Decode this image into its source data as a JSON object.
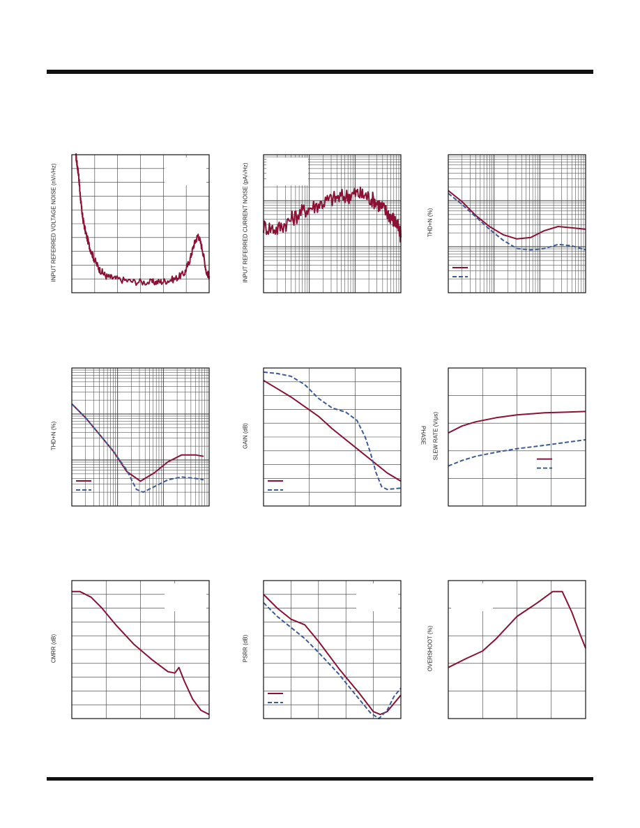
{
  "colors": {
    "series_a": "#8b1034",
    "series_b": "#3a5a9a",
    "grid": "#333333"
  },
  "chart_data": [
    {
      "id": "p1",
      "type": "line",
      "ylabel": "INPUT REFERRED VOLTAGE NOISE (nV/√Hz)",
      "xlim": [
        0,
        100
      ],
      "ylim": [
        0,
        100
      ],
      "series": [
        {
          "color": "series_a",
          "noise": 2.5,
          "points": [
            [
              3,
              99
            ],
            [
              4,
              92
            ],
            [
              5,
              85
            ],
            [
              6,
              72
            ],
            [
              7,
              62
            ],
            [
              8,
              54
            ],
            [
              10,
              44
            ],
            [
              13,
              33
            ],
            [
              16,
              25
            ],
            [
              20,
              17
            ],
            [
              25,
              12
            ],
            [
              32,
              10
            ],
            [
              45,
              8
            ],
            [
              58,
              7.5
            ],
            [
              66,
              8
            ],
            [
              75,
              10
            ],
            [
              82,
              14
            ],
            [
              86,
              24
            ],
            [
              89,
              35
            ],
            [
              92,
              42
            ],
            [
              95,
              32
            ],
            [
              98,
              15
            ],
            [
              100,
              12
            ]
          ]
        }
      ],
      "xgrid": 6,
      "ygrid": 10,
      "legend": "top-right"
    },
    {
      "id": "p2",
      "type": "line",
      "ylabel": "INPUT REFERRED CURRENT NOISE (pA/√Hz)",
      "xlim": [
        0,
        100
      ],
      "ylim": [
        0,
        100
      ],
      "series": [
        {
          "color": "series_a",
          "noise": 6,
          "points": [
            [
              0,
              48
            ],
            [
              10,
              46
            ],
            [
              20,
              53
            ],
            [
              30,
              60
            ],
            [
              40,
              64
            ],
            [
              50,
              68
            ],
            [
              60,
              70
            ],
            [
              68,
              72
            ],
            [
              75,
              70
            ],
            [
              82,
              66
            ],
            [
              88,
              60
            ],
            [
              93,
              55
            ],
            [
              97,
              50
            ],
            [
              100,
              40
            ]
          ]
        }
      ],
      "xgrid": "log",
      "ygrid": "log",
      "legend": "top-left"
    },
    {
      "id": "p3",
      "type": "line",
      "ylabel": "THD+N (%)",
      "xlim": [
        0,
        100
      ],
      "ylim": [
        0,
        100
      ],
      "series": [
        {
          "color": "series_a",
          "dash": false,
          "points": [
            [
              0,
              74
            ],
            [
              10,
              66
            ],
            [
              20,
              56
            ],
            [
              30,
              48
            ],
            [
              40,
              42
            ],
            [
              50,
              39
            ],
            [
              60,
              40
            ],
            [
              70,
              45
            ],
            [
              80,
              48
            ],
            [
              90,
              47
            ],
            [
              100,
              46
            ]
          ]
        },
        {
          "color": "series_b",
          "dash": true,
          "points": [
            [
              0,
              72
            ],
            [
              10,
              64
            ],
            [
              20,
              55
            ],
            [
              30,
              46
            ],
            [
              40,
              38
            ],
            [
              50,
              32
            ],
            [
              60,
              31
            ],
            [
              70,
              32
            ],
            [
              80,
              35
            ],
            [
              90,
              34
            ],
            [
              100,
              31
            ]
          ]
        }
      ],
      "xgrid": "log",
      "ygrid": "log",
      "legend": "bottom-left"
    },
    {
      "id": "p4",
      "type": "line",
      "ylabel": "THD+N (%)",
      "xlim": [
        0,
        100
      ],
      "ylim": [
        0,
        100
      ],
      "series": [
        {
          "color": "series_a",
          "dash": false,
          "points": [
            [
              0,
              74
            ],
            [
              10,
              64
            ],
            [
              20,
              52
            ],
            [
              30,
              40
            ],
            [
              40,
              25
            ],
            [
              50,
              18
            ],
            [
              60,
              24
            ],
            [
              70,
              32
            ],
            [
              80,
              37
            ],
            [
              90,
              37
            ],
            [
              96,
              36
            ]
          ]
        },
        {
          "color": "series_b",
          "dash": true,
          "points": [
            [
              0,
              74
            ],
            [
              10,
              64
            ],
            [
              20,
              52
            ],
            [
              30,
              40
            ],
            [
              40,
              26
            ],
            [
              47,
              12
            ],
            [
              52,
              10
            ],
            [
              60,
              14
            ],
            [
              70,
              19
            ],
            [
              80,
              21
            ],
            [
              90,
              20
            ],
            [
              96,
              19
            ]
          ]
        }
      ],
      "xgrid": "log",
      "ygrid": "log",
      "legend": "bottom-left"
    },
    {
      "id": "p5",
      "type": "line",
      "ylabel": "GAIN (dB)",
      "xlim": [
        0,
        100
      ],
      "ylim": [
        0,
        100
      ],
      "series": [
        {
          "color": "series_a",
          "dash": false,
          "noise": 0,
          "points": [
            [
              0,
              91
            ],
            [
              10,
              85
            ],
            [
              20,
              79
            ],
            [
              30,
              72
            ],
            [
              40,
              65
            ],
            [
              50,
              56
            ],
            [
              60,
              48
            ],
            [
              70,
              40
            ],
            [
              80,
              32
            ],
            [
              90,
              24
            ],
            [
              100,
              18
            ]
          ]
        },
        {
          "color": "series_b",
          "dash": true,
          "points": [
            [
              0,
              97
            ],
            [
              10,
              96
            ],
            [
              20,
              94
            ],
            [
              30,
              88
            ],
            [
              40,
              78
            ],
            [
              50,
              71
            ],
            [
              60,
              68
            ],
            [
              68,
              62
            ],
            [
              74,
              50
            ],
            [
              78,
              38
            ],
            [
              82,
              24
            ],
            [
              86,
              14
            ],
            [
              90,
              12
            ],
            [
              100,
              13
            ]
          ]
        }
      ],
      "xgrid": 3,
      "ygrid": 10,
      "legend": "bottom-left"
    },
    {
      "id": "p6",
      "type": "line",
      "ylabel": "SLEW RATE (V/µs)",
      "ylabel2": "PHASE",
      "xlim": [
        0,
        100
      ],
      "ylim": [
        0,
        100
      ],
      "series": [
        {
          "color": "series_a",
          "dash": false,
          "points": [
            [
              0,
              53
            ],
            [
              10,
              58
            ],
            [
              20,
              61
            ],
            [
              35,
              64
            ],
            [
              50,
              66
            ],
            [
              70,
              67.5
            ],
            [
              85,
              68
            ],
            [
              100,
              68.5
            ]
          ]
        },
        {
          "color": "series_b",
          "dash": true,
          "points": [
            [
              0,
              29
            ],
            [
              10,
              33
            ],
            [
              20,
              36
            ],
            [
              35,
              39
            ],
            [
              50,
              41.5
            ],
            [
              70,
              44
            ],
            [
              85,
              46
            ],
            [
              100,
              48
            ]
          ]
        }
      ],
      "xgrid": 4,
      "ygrid": 5,
      "legend": "center-right"
    },
    {
      "id": "p7",
      "type": "line",
      "ylabel": "CMRR (dB)",
      "xlim": [
        0,
        100
      ],
      "ylim": [
        0,
        100
      ],
      "series": [
        {
          "color": "series_a",
          "points": [
            [
              0,
              92
            ],
            [
              6,
              92
            ],
            [
              14,
              88
            ],
            [
              22,
              80
            ],
            [
              32,
              68
            ],
            [
              45,
              54
            ],
            [
              58,
              43
            ],
            [
              70,
              34
            ],
            [
              75,
              33
            ],
            [
              78,
              37
            ],
            [
              82,
              27
            ],
            [
              88,
              14
            ],
            [
              94,
              6
            ],
            [
              100,
              3
            ]
          ]
        }
      ],
      "xgrid": 4,
      "ygrid": 10,
      "legend": "top-right"
    },
    {
      "id": "p8",
      "type": "line",
      "ylabel": "PSRR (dB)",
      "xlim": [
        0,
        100
      ],
      "ylim": [
        0,
        100
      ],
      "series": [
        {
          "color": "series_a",
          "dash": false,
          "points": [
            [
              0,
              90
            ],
            [
              10,
              80
            ],
            [
              20,
              72
            ],
            [
              30,
              68
            ],
            [
              40,
              56
            ],
            [
              55,
              36
            ],
            [
              70,
              18
            ],
            [
              80,
              5
            ],
            [
              85,
              3
            ],
            [
              90,
              5
            ],
            [
              100,
              17
            ]
          ]
        },
        {
          "color": "series_b",
          "dash": true,
          "points": [
            [
              0,
              84
            ],
            [
              10,
              74
            ],
            [
              20,
              66
            ],
            [
              30,
              58
            ],
            [
              40,
              48
            ],
            [
              55,
              32
            ],
            [
              68,
              16
            ],
            [
              78,
              4
            ],
            [
              84,
              0
            ],
            [
              90,
              6
            ],
            [
              95,
              16
            ],
            [
              100,
              22
            ]
          ]
        }
      ],
      "xgrid": 5,
      "ygrid": 10,
      "legend": "top-right"
    },
    {
      "id": "p9",
      "type": "line",
      "ylabel": "OVERSHOOT (%)",
      "xlim": [
        0,
        100
      ],
      "ylim": [
        0,
        100
      ],
      "series": [
        {
          "color": "series_a",
          "points": [
            [
              0,
              37
            ],
            [
              12,
              43
            ],
            [
              25,
              49
            ],
            [
              35,
              58
            ],
            [
              50,
              74
            ],
            [
              65,
              84
            ],
            [
              76,
              92
            ],
            [
              83,
              92
            ],
            [
              90,
              77
            ],
            [
              96,
              61
            ],
            [
              100,
              51
            ]
          ]
        }
      ],
      "xgrid": 4,
      "ygrid": 5,
      "legend": "top-left"
    }
  ]
}
